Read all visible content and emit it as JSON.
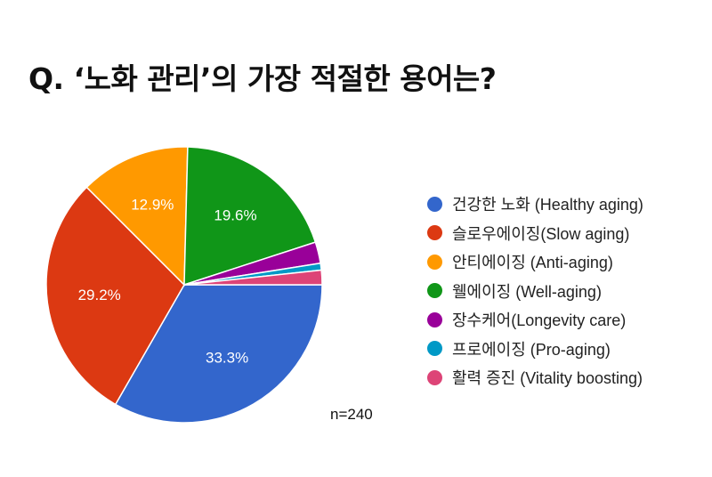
{
  "title": "Q. ‘노화 관리’의 가장 적절한 용어는?",
  "sample_size": "n=240",
  "colors": {
    "text": "#222222",
    "slice_label": "#ffffff",
    "slice_border": "#ffffff"
  },
  "chart_data": {
    "type": "pie",
    "title": "Q. ‘노화 관리’의 가장 적절한 용어는?",
    "start_angle_deg": 90,
    "direction": "clockwise",
    "legend_position": "right",
    "slices": [
      {
        "label": "건강한 노화 (Healthy aging)",
        "value": 33.3,
        "value_label": "33.3%",
        "color": "#3366cc"
      },
      {
        "label": "슬로우에이징(Slow aging)",
        "value": 29.2,
        "value_label": "29.2%",
        "color": "#dc3912"
      },
      {
        "label": "안티에이징 (Anti-aging)",
        "value": 12.9,
        "value_label": "12.9%",
        "color": "#ff9900"
      },
      {
        "label": "웰에이징 (Well-aging)",
        "value": 19.6,
        "value_label": "19.6%",
        "color": "#109618"
      },
      {
        "label": "장수케어(Longevity care)",
        "value": 2.5,
        "value_label": "",
        "color": "#990099"
      },
      {
        "label": "프로에이징 (Pro-aging)",
        "value": 0.8,
        "value_label": "",
        "color": "#0099c6"
      },
      {
        "label": "활력 증진 (Vitality boosting)",
        "value": 1.7,
        "value_label": "",
        "color": "#dd4477"
      }
    ]
  }
}
